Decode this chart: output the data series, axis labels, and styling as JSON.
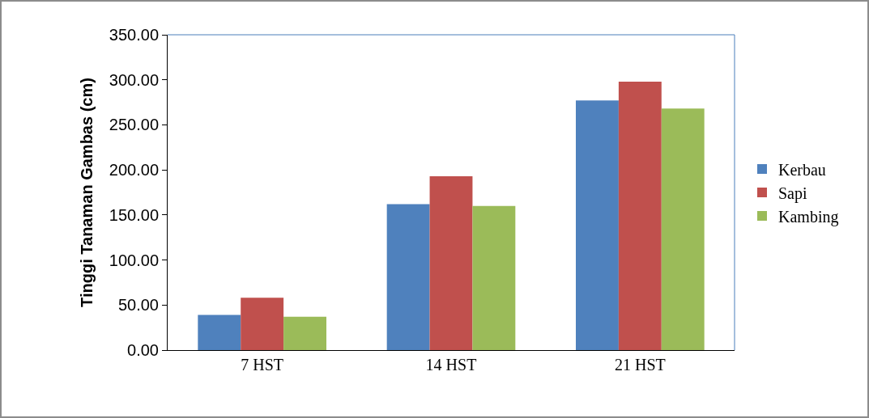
{
  "chart_data": {
    "type": "bar",
    "ylabel": "Tinggi Tanaman Gambas (cm)",
    "categories": [
      "7 HST",
      "14 HST",
      "21 HST"
    ],
    "series": [
      {
        "name": "Kerbau",
        "color": "#4f81bd",
        "values": [
          39,
          162,
          277
        ]
      },
      {
        "name": "Sapi",
        "color": "#c0504d",
        "values": [
          58,
          193,
          298
        ]
      },
      {
        "name": "Kambing",
        "color": "#9bbb59",
        "values": [
          37,
          160,
          268
        ]
      }
    ],
    "ylim": [
      0,
      350
    ],
    "yticks": [
      {
        "value": 0,
        "label": "0.00"
      },
      {
        "value": 50,
        "label": "50.00"
      },
      {
        "value": 100,
        "label": "100.00"
      },
      {
        "value": 150,
        "label": "150.00"
      },
      {
        "value": 200,
        "label": "200.00"
      },
      {
        "value": 250,
        "label": "250.00"
      },
      {
        "value": 300,
        "label": "300.00"
      },
      {
        "value": 350,
        "label": "350.00"
      }
    ],
    "grid": false,
    "legend": "right"
  }
}
